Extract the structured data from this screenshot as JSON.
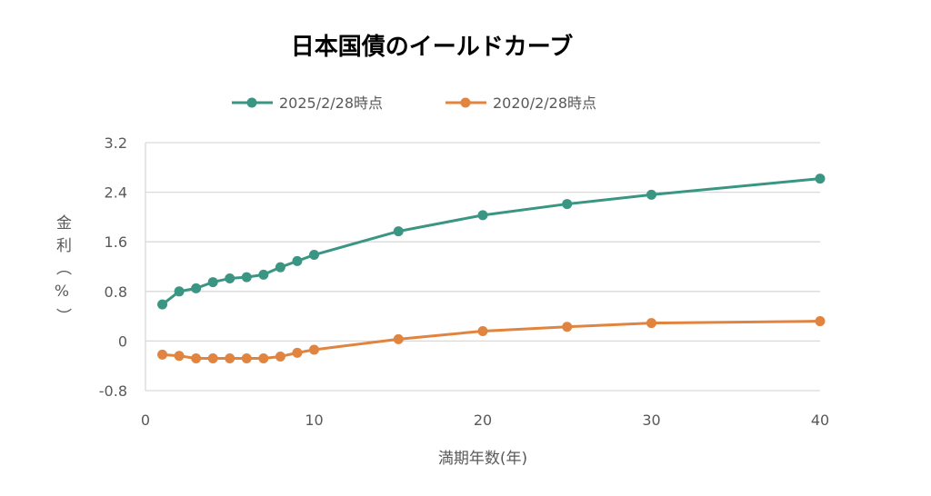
{
  "chart_data": {
    "type": "line",
    "title": "日本国債のイールドカーブ",
    "xlabel": "満期年数(年)",
    "ylabel": "金利（%）",
    "ylabel_chars": [
      "金",
      "利",
      "（",
      "%",
      "）"
    ],
    "xlim": [
      0,
      40
    ],
    "ylim": [
      -0.8,
      3.2
    ],
    "xticks": [
      0,
      10,
      20,
      30,
      40
    ],
    "yticks": [
      3.2,
      2.4,
      1.6,
      0.8,
      0,
      -0.8
    ],
    "ytick_labels": [
      "3.2",
      "2.4",
      "1.6",
      "0.8",
      "0",
      "-0.8"
    ],
    "grid": true,
    "legend_position": "top",
    "x": [
      1,
      2,
      3,
      4,
      5,
      6,
      7,
      8,
      9,
      10,
      15,
      20,
      25,
      30,
      40
    ],
    "series": [
      {
        "name": "2025/2/28時点",
        "color": "#3a9683",
        "values": [
          0.59,
          0.8,
          0.85,
          0.95,
          1.01,
          1.03,
          1.07,
          1.19,
          1.29,
          1.39,
          1.77,
          2.03,
          2.21,
          2.36,
          2.62
        ]
      },
      {
        "name": "2020/2/28時点",
        "color": "#e0843f",
        "values": [
          -0.22,
          -0.24,
          -0.28,
          -0.28,
          -0.28,
          -0.28,
          -0.28,
          -0.25,
          -0.19,
          -0.14,
          0.03,
          0.16,
          0.23,
          0.29,
          0.32
        ]
      }
    ]
  }
}
